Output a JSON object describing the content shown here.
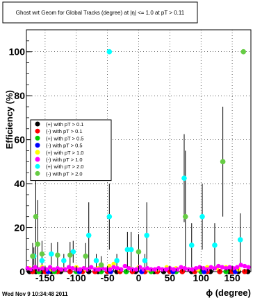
{
  "chart_data": {
    "type": "scatter",
    "title": "Ghost wrt Geom for Global Tracks (degree) at |η| <= 1.0 at pT > 0.11",
    "xlabel": "ϕ (degree)",
    "ylabel": "Efficiency (%)",
    "xlim": [
      -180,
      180
    ],
    "ylim": [
      0,
      110
    ],
    "x_ticks": [
      -150,
      -100,
      -50,
      0,
      50,
      100,
      150
    ],
    "y_ticks": [
      0,
      20,
      40,
      60,
      80,
      100
    ],
    "grid": true,
    "legend_position": "left-middle",
    "timestamp": "Wed Nov  9 10:34:48 2011",
    "series": [
      {
        "name": "(+) with pT > 0.1",
        "color": "#000000",
        "x": [
          -175,
          -165,
          -155,
          -140,
          -125,
          -110,
          -95,
          -80,
          -65,
          -50,
          -35,
          -20,
          -5,
          10,
          25,
          40,
          55,
          70,
          85,
          100,
          115,
          130,
          145,
          160,
          175
        ],
        "y": [
          0,
          0,
          0,
          0,
          0,
          0,
          0,
          0,
          0,
          0,
          0,
          0,
          0,
          0,
          0,
          0,
          0,
          0,
          0,
          0,
          0,
          0,
          0,
          0,
          0
        ]
      },
      {
        "name": "(-) with pT > 0.1",
        "color": "#ff0000",
        "x": [
          -170,
          -150,
          -130,
          -110,
          -90,
          -70,
          -50,
          -30,
          -10,
          10,
          30,
          50,
          70,
          90,
          110,
          130,
          150,
          170
        ],
        "y": [
          0,
          0,
          0,
          0,
          0,
          0,
          0,
          0,
          0,
          0,
          0,
          0,
          0,
          0,
          0,
          0,
          0,
          0
        ]
      },
      {
        "name": "(+) with pT > 0.5",
        "color": "#00cc00",
        "x": [
          -160,
          -135,
          -100,
          -60,
          -20,
          20,
          60,
          100,
          140
        ],
        "y": [
          0,
          0,
          0,
          0,
          0,
          0,
          0,
          0,
          0
        ]
      },
      {
        "name": "(-) with pT > 0.5",
        "color": "#0000ff",
        "x": [
          -145,
          -95,
          -45,
          5,
          55,
          105,
          155
        ],
        "y": [
          0,
          0,
          0,
          0,
          0,
          0,
          0
        ]
      },
      {
        "name": "(+) with pT > 1.0",
        "color": "#ffff00",
        "x": [
          -175,
          -155,
          -140,
          -120,
          -100,
          -85,
          -65,
          -47,
          -40,
          -30,
          -15,
          0,
          15,
          30,
          45,
          60,
          80,
          95,
          110,
          125,
          140,
          160
        ],
        "y": [
          1.5,
          2,
          1,
          1,
          2,
          1,
          1.5,
          2.5,
          3.5,
          1,
          1.5,
          2,
          1,
          1,
          2,
          1.5,
          1,
          1,
          2,
          1.5,
          2,
          1
        ]
      },
      {
        "name": "(-) with pT > 1.0",
        "color": "#ff00ff",
        "x": [
          -178,
          -172,
          -166,
          -160,
          -154,
          -148,
          -142,
          -136,
          -130,
          -124,
          -118,
          -112,
          -106,
          -100,
          -94,
          -88,
          -82,
          -76,
          -70,
          -64,
          -58,
          -52,
          -46,
          -40,
          -34,
          -28,
          -22,
          -16,
          -10,
          -4,
          2,
          8,
          14,
          20,
          26,
          32,
          38,
          44,
          50,
          56,
          62,
          68,
          74,
          80,
          86,
          92,
          98,
          104,
          110,
          116,
          122,
          128,
          134,
          140,
          146,
          152,
          158,
          164,
          170,
          176
        ],
        "y": [
          1.5,
          1,
          2,
          1,
          1.5,
          1,
          2,
          1,
          1.5,
          1,
          1,
          2,
          1.5,
          1,
          1,
          1.5,
          1,
          2,
          1,
          1,
          1.5,
          1,
          1,
          2,
          1.5,
          1,
          2.5,
          1.5,
          1,
          1,
          2,
          1,
          1.5,
          1,
          1,
          1.5,
          1,
          1,
          1.5,
          1,
          1,
          2,
          1.5,
          1,
          1,
          1.5,
          2,
          1.5,
          1,
          2,
          1.5,
          2.5,
          2,
          1.5,
          2,
          1.5,
          2,
          3,
          2.5,
          2
        ]
      },
      {
        "name": "(+) with pT > 2.0",
        "color": "#00ffff",
        "x": [
          -168,
          -155,
          -140,
          -120,
          -105,
          -80,
          -68,
          -47,
          -35,
          -18,
          -12,
          10,
          13,
          73,
          85,
          102,
          122,
          163
        ],
        "y": [
          7,
          5,
          8,
          5,
          9,
          16.5,
          5,
          25,
          5,
          10,
          10,
          5,
          16.5,
          42.5,
          12,
          25,
          12,
          14.5
        ],
        "err": [
          4,
          3,
          5,
          3,
          5,
          15,
          3,
          15,
          3,
          8,
          8,
          3,
          15,
          20,
          10,
          15,
          10,
          12
        ]
      },
      {
        "name": "(-) with pT > 2.0",
        "color": "#66cc44",
        "x": [
          -170,
          -165,
          -162,
          -155,
          -130,
          -110,
          -85,
          -60,
          0,
          75,
          135
        ],
        "y": [
          7,
          25,
          12.5,
          8,
          7.5,
          7.5,
          7,
          3,
          9,
          25,
          50
        ],
        "err": [
          6,
          40,
          20,
          6,
          6,
          6,
          6,
          4,
          8,
          30,
          25
        ]
      }
    ],
    "outliers_at_100": [
      {
        "series": "(+) with pT > 2.0",
        "x": -47,
        "y": 100
      },
      {
        "series": "(-) with pT > 2.0",
        "x": 168,
        "y": 100
      }
    ]
  },
  "legend_label_prefix": ""
}
